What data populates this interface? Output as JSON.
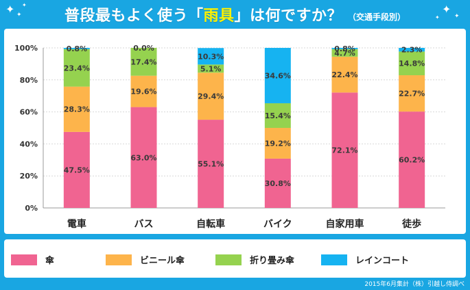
{
  "title": {
    "prefix": "普段最もよく使う",
    "bracket_open": "「",
    "keyword": "雨具",
    "bracket_close": "」",
    "suffix": "は何ですか？",
    "sub": "（交通手段別）"
  },
  "footnote": "2015年6月集計（株）引越し侍調べ",
  "colors": {
    "umbrella": "#f06491",
    "vinyl_umbrella": "#fdb44b",
    "folding_umbrella": "#95d24f",
    "raincoat": "#16b3f1",
    "header_bg": "#19a6e2",
    "title_keyword": "#fff200"
  },
  "chart_data": {
    "type": "bar",
    "stacked": true,
    "categories": [
      "電車",
      "バス",
      "自転車",
      "バイク",
      "自家用車",
      "徒歩"
    ],
    "series": [
      {
        "name": "傘",
        "color": "#f06491",
        "values": [
          47.5,
          63.0,
          55.1,
          30.8,
          72.1,
          60.2
        ]
      },
      {
        "name": "ビニール傘",
        "color": "#fdb44b",
        "values": [
          28.3,
          19.6,
          29.4,
          19.2,
          22.4,
          22.7
        ]
      },
      {
        "name": "折り畳み傘",
        "color": "#95d24f",
        "values": [
          23.4,
          17.4,
          5.1,
          15.4,
          4.7,
          14.8
        ]
      },
      {
        "name": "レインコート",
        "color": "#16b3f1",
        "values": [
          0.8,
          0.0,
          10.3,
          34.6,
          0.8,
          2.3
        ]
      }
    ],
    "y_ticks": [
      "0%",
      "20%",
      "40%",
      "60%",
      "80%",
      "100%"
    ],
    "ylim": [
      0,
      100
    ],
    "grid": true,
    "legend_position": "bottom"
  }
}
